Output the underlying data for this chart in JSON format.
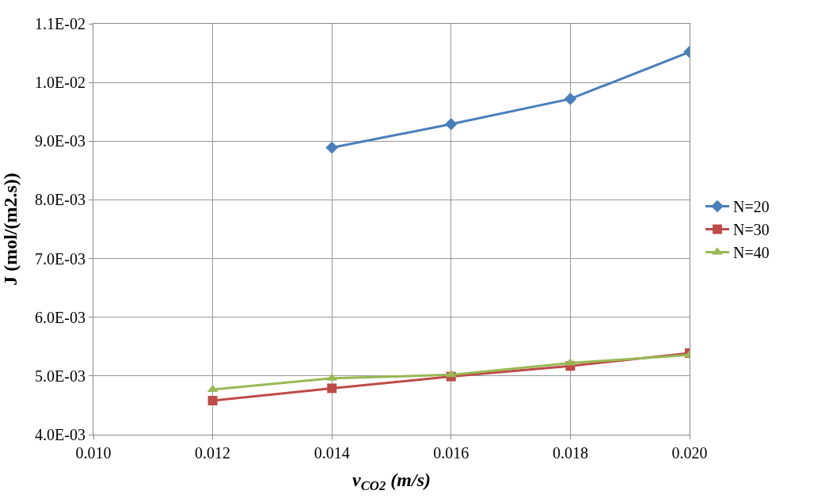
{
  "chart_data": {
    "type": "line",
    "xlabel": "v$_{CO2}$ (m/s)",
    "ylabel": "J (mol/(m2.s))",
    "x": [
      0.012,
      0.014,
      0.016,
      0.018,
      0.02
    ],
    "series": [
      {
        "name": "N=20",
        "color": "#4a7ebb",
        "marker": "diamond",
        "values": [
          null,
          0.00889,
          0.00929,
          0.00972,
          0.01052
        ]
      },
      {
        "name": "N=30",
        "color": "#be4b48",
        "marker": "square",
        "values": [
          0.00458,
          0.00479,
          0.00499,
          0.00517,
          0.00539
        ]
      },
      {
        "name": "N=40",
        "color": "#98b954",
        "marker": "triangle",
        "values": [
          0.00477,
          0.00496,
          0.00502,
          0.00522,
          0.00536
        ]
      }
    ],
    "xlim": [
      0.01,
      0.02
    ],
    "xticks": [
      {
        "value": 0.01,
        "label": "0.010"
      },
      {
        "value": 0.012,
        "label": "0.012"
      },
      {
        "value": 0.014,
        "label": "0.014"
      },
      {
        "value": 0.016,
        "label": "0.016"
      },
      {
        "value": 0.018,
        "label": "0.018"
      },
      {
        "value": 0.02,
        "label": "0.020"
      }
    ],
    "ylim": [
      0.004,
      0.011
    ],
    "yticks": [
      {
        "value": 0.004,
        "label": "4.0E-03"
      },
      {
        "value": 0.005,
        "label": "5.0E-03"
      },
      {
        "value": 0.006,
        "label": "6.0E-03"
      },
      {
        "value": 0.007,
        "label": "7.0E-03"
      },
      {
        "value": 0.008,
        "label": "8.0E-03"
      },
      {
        "value": 0.009,
        "label": "9.0E-03"
      },
      {
        "value": 0.01,
        "label": "1.0E-02"
      },
      {
        "value": 0.011,
        "label": "1.1E-02"
      }
    ],
    "grid": true,
    "legend": "right",
    "line_style": "solid"
  }
}
